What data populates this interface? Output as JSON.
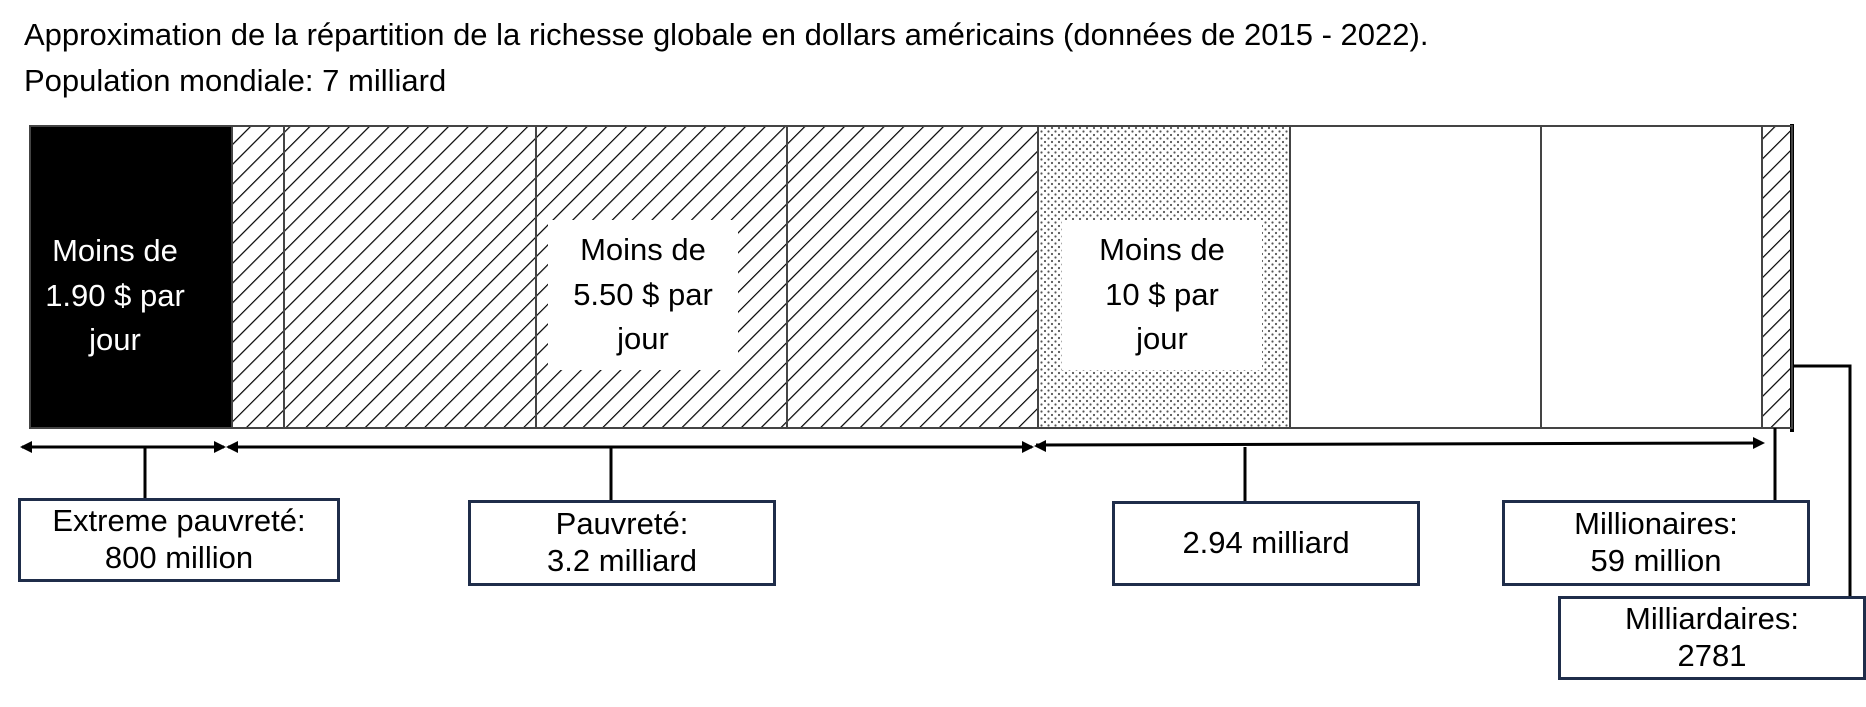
{
  "title": {
    "line1": "Approximation de la répartition de la richesse globale en dollars américains (données de 2015 - 2022).",
    "line2": "Population mondiale: 7 milliard"
  },
  "segments": [
    {
      "lines": [
        "Moins de",
        "1.90 $ par",
        "jour"
      ],
      "fill": "#000000",
      "text_color": "#ffffff"
    },
    {
      "lines": [
        "Moins de",
        "5.50 $ par",
        "jour"
      ],
      "fill": "hatch",
      "text_color": "#000000"
    },
    {
      "lines": [
        "Moins de",
        "10 $ par",
        "jour"
      ],
      "fill": "dots",
      "text_color": "#000000"
    }
  ],
  "groups": [
    {
      "lines": [
        "Extreme pauvreté:",
        "800 million"
      ]
    },
    {
      "lines": [
        "Pauvreté:",
        "3.2 milliard"
      ]
    },
    {
      "lines": [
        "2.94 milliard"
      ]
    },
    {
      "lines": [
        "Millionaires:",
        "59 million"
      ]
    },
    {
      "lines": [
        "Milliardaires:",
        "2781"
      ]
    }
  ],
  "colors": {
    "box_border": "#1f2d4a",
    "line": "#000000"
  }
}
